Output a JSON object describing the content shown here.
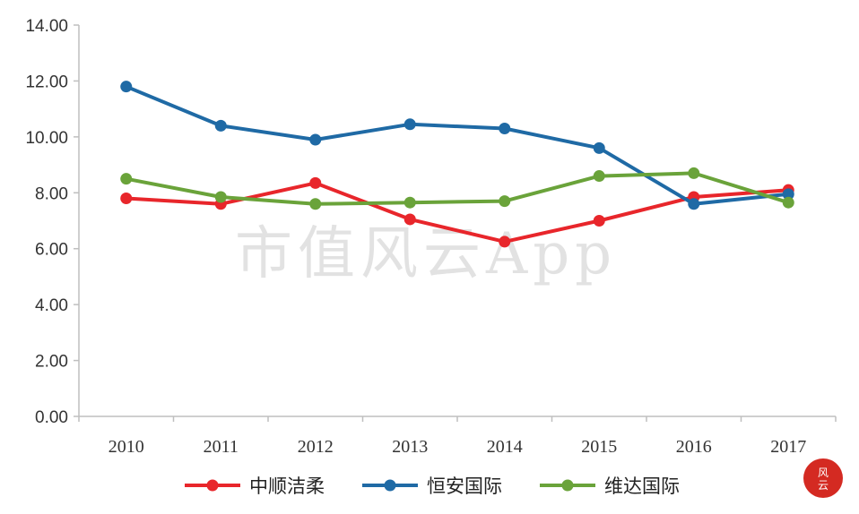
{
  "watermark": "市值风云App",
  "chart_data": {
    "type": "line",
    "categories": [
      "2010",
      "2011",
      "2012",
      "2013",
      "2014",
      "2015",
      "2016",
      "2017"
    ],
    "ylim": [
      0,
      14
    ],
    "yticks": [
      "0.00",
      "2.00",
      "4.00",
      "6.00",
      "8.00",
      "10.00",
      "12.00",
      "14.00"
    ],
    "grid": false,
    "legend_position": "bottom",
    "title": "",
    "xlabel": "",
    "ylabel": "",
    "series": [
      {
        "name": "中顺洁柔",
        "color": "#e8262b",
        "values": [
          7.8,
          7.6,
          8.35,
          7.05,
          6.25,
          7.0,
          7.85,
          8.1
        ]
      },
      {
        "name": "恒安国际",
        "color": "#1f6aa5",
        "values": [
          11.8,
          10.4,
          9.9,
          10.45,
          10.3,
          9.6,
          7.6,
          7.95
        ]
      },
      {
        "name": "维达国际",
        "color": "#6aa33a",
        "values": [
          8.5,
          7.85,
          7.6,
          7.65,
          7.7,
          8.6,
          8.7,
          7.65
        ]
      }
    ]
  }
}
